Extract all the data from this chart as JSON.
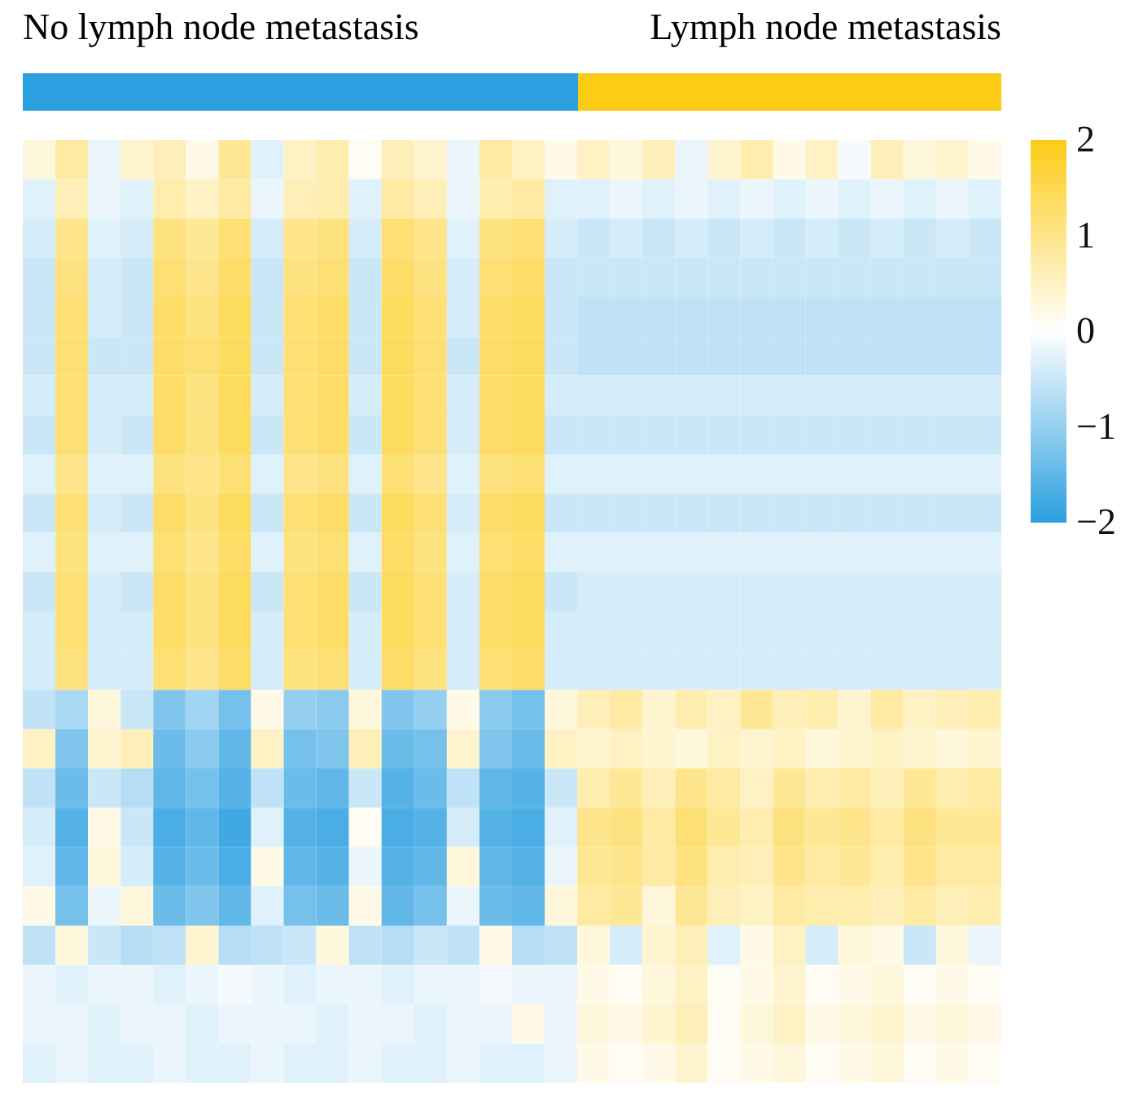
{
  "chart_data": {
    "type": "heatmap",
    "annotations": [
      "No lymph node metastasis",
      "Lymph node metastasis"
    ],
    "categories": [
      null,
      null,
      null,
      null,
      null,
      null,
      null,
      null,
      null,
      null,
      null,
      null,
      null,
      null,
      null,
      null,
      null,
      null,
      null,
      null,
      null,
      null,
      null,
      null,
      null,
      null,
      null,
      null,
      null,
      null
    ],
    "y_categories": [
      null,
      null,
      null,
      null,
      null,
      null,
      null,
      null,
      null,
      null,
      null,
      null,
      null,
      null,
      null,
      null,
      null,
      null,
      null,
      null,
      null,
      null,
      null,
      null
    ],
    "cells": [
      [
        0.3,
        0.8,
        -0.2,
        0.4,
        0.6,
        0.2,
        0.9,
        -0.3,
        0.5,
        0.7,
        0.1,
        0.6,
        0.4,
        -0.2,
        0.8,
        0.5,
        0.2,
        0.5,
        0.3,
        0.6,
        -0.2,
        0.4,
        0.7,
        0.2,
        0.5,
        -0.1,
        0.6,
        0.3,
        0.4,
        0.2
      ],
      [
        -0.3,
        0.6,
        -0.2,
        -0.3,
        0.7,
        0.5,
        0.8,
        -0.2,
        0.6,
        0.7,
        -0.3,
        0.8,
        0.6,
        -0.2,
        0.7,
        0.8,
        -0.3,
        -0.3,
        -0.2,
        -0.3,
        -0.2,
        -0.3,
        -0.2,
        -0.3,
        -0.2,
        -0.3,
        -0.2,
        -0.3,
        -0.2,
        -0.3
      ],
      [
        -0.4,
        1.0,
        -0.3,
        -0.4,
        1.1,
        0.9,
        1.2,
        -0.4,
        1.0,
        1.1,
        -0.4,
        1.2,
        1.0,
        -0.3,
        1.1,
        1.2,
        -0.4,
        -0.5,
        -0.4,
        -0.5,
        -0.4,
        -0.5,
        -0.4,
        -0.5,
        -0.4,
        -0.5,
        -0.4,
        -0.5,
        -0.4,
        -0.5
      ],
      [
        -0.5,
        1.1,
        -0.4,
        -0.5,
        1.2,
        1.0,
        1.3,
        -0.5,
        1.1,
        1.2,
        -0.5,
        1.3,
        1.1,
        -0.4,
        1.2,
        1.3,
        -0.5,
        -0.5,
        -0.5,
        -0.5,
        -0.5,
        -0.5,
        -0.5,
        -0.5,
        -0.5,
        -0.5,
        -0.5,
        -0.5,
        -0.5,
        -0.5
      ],
      [
        -0.5,
        1.2,
        -0.4,
        -0.5,
        1.3,
        1.1,
        1.4,
        -0.5,
        1.2,
        1.3,
        -0.5,
        1.4,
        1.2,
        -0.4,
        1.3,
        1.4,
        -0.5,
        -0.6,
        -0.6,
        -0.6,
        -0.6,
        -0.6,
        -0.6,
        -0.6,
        -0.6,
        -0.6,
        -0.6,
        -0.6,
        -0.6,
        -0.6
      ],
      [
        -0.5,
        1.2,
        -0.5,
        -0.5,
        1.3,
        1.2,
        1.4,
        -0.5,
        1.2,
        1.3,
        -0.5,
        1.4,
        1.2,
        -0.5,
        1.3,
        1.4,
        -0.5,
        -0.6,
        -0.6,
        -0.6,
        -0.6,
        -0.6,
        -0.6,
        -0.6,
        -0.6,
        -0.6,
        -0.6,
        -0.6,
        -0.6,
        -0.6
      ],
      [
        -0.4,
        1.2,
        -0.4,
        -0.4,
        1.3,
        1.1,
        1.4,
        -0.4,
        1.2,
        1.3,
        -0.4,
        1.4,
        1.2,
        -0.4,
        1.3,
        1.4,
        -0.4,
        -0.4,
        -0.4,
        -0.4,
        -0.4,
        -0.4,
        -0.4,
        -0.4,
        -0.4,
        -0.4,
        -0.4,
        -0.4,
        -0.4,
        -0.4
      ],
      [
        -0.5,
        1.2,
        -0.4,
        -0.5,
        1.3,
        1.1,
        1.4,
        -0.5,
        1.2,
        1.3,
        -0.5,
        1.4,
        1.2,
        -0.4,
        1.3,
        1.4,
        -0.5,
        -0.5,
        -0.5,
        -0.5,
        -0.5,
        -0.5,
        -0.5,
        -0.5,
        -0.5,
        -0.5,
        -0.5,
        -0.5,
        -0.5,
        -0.5
      ],
      [
        -0.3,
        1.0,
        -0.3,
        -0.3,
        1.1,
        1.0,
        1.2,
        -0.3,
        1.0,
        1.1,
        -0.3,
        1.2,
        1.0,
        -0.3,
        1.1,
        1.2,
        -0.3,
        -0.3,
        -0.3,
        -0.3,
        -0.3,
        -0.3,
        -0.3,
        -0.3,
        -0.3,
        -0.3,
        -0.3,
        -0.3,
        -0.3,
        -0.3
      ],
      [
        -0.5,
        1.2,
        -0.4,
        -0.5,
        1.3,
        1.1,
        1.4,
        -0.5,
        1.2,
        1.3,
        -0.5,
        1.4,
        1.2,
        -0.4,
        1.3,
        1.4,
        -0.5,
        -0.5,
        -0.5,
        -0.5,
        -0.5,
        -0.5,
        -0.5,
        -0.5,
        -0.5,
        -0.5,
        -0.5,
        -0.5,
        -0.5,
        -0.5
      ],
      [
        -0.3,
        1.1,
        -0.3,
        -0.3,
        1.2,
        1.0,
        1.3,
        -0.3,
        1.1,
        1.2,
        -0.3,
        1.3,
        1.1,
        -0.3,
        1.2,
        1.3,
        -0.3,
        -0.3,
        -0.3,
        -0.3,
        -0.3,
        -0.3,
        -0.3,
        -0.3,
        -0.3,
        -0.3,
        -0.3,
        -0.3,
        -0.3,
        -0.3
      ],
      [
        -0.5,
        1.2,
        -0.4,
        -0.5,
        1.3,
        1.1,
        1.4,
        -0.5,
        1.2,
        1.3,
        -0.5,
        1.4,
        1.2,
        -0.4,
        1.3,
        1.4,
        -0.5,
        -0.4,
        -0.4,
        -0.4,
        -0.4,
        -0.4,
        -0.4,
        -0.4,
        -0.4,
        -0.4,
        -0.4,
        -0.4,
        -0.4,
        -0.4
      ],
      [
        -0.4,
        1.2,
        -0.4,
        -0.4,
        1.3,
        1.1,
        1.4,
        -0.4,
        1.2,
        1.3,
        -0.4,
        1.4,
        1.2,
        -0.4,
        1.3,
        1.4,
        -0.4,
        -0.4,
        -0.4,
        -0.4,
        -0.4,
        -0.4,
        -0.4,
        -0.4,
        -0.4,
        -0.4,
        -0.4,
        -0.4,
        -0.4,
        -0.4
      ],
      [
        -0.4,
        1.1,
        -0.4,
        -0.4,
        1.2,
        1.0,
        1.3,
        -0.4,
        1.1,
        1.2,
        -0.4,
        1.3,
        1.1,
        -0.4,
        1.2,
        1.3,
        -0.4,
        -0.4,
        -0.4,
        -0.4,
        -0.4,
        -0.4,
        -0.4,
        -0.4,
        -0.4,
        -0.4,
        -0.4,
        -0.4,
        -0.4,
        -0.4
      ],
      [
        -0.6,
        -0.8,
        0.3,
        -0.5,
        -1.2,
        -0.9,
        -1.3,
        0.2,
        -1.0,
        -1.1,
        0.3,
        -1.2,
        -1.0,
        0.2,
        -1.1,
        -1.3,
        0.3,
        0.6,
        0.8,
        0.4,
        0.7,
        0.5,
        0.9,
        0.6,
        0.7,
        0.4,
        0.8,
        0.5,
        0.6,
        0.7
      ],
      [
        0.5,
        -1.2,
        0.4,
        0.6,
        -1.4,
        -1.1,
        -1.5,
        0.5,
        -1.3,
        -1.2,
        0.6,
        -1.4,
        -1.3,
        0.4,
        -1.2,
        -1.4,
        0.5,
        0.4,
        0.5,
        0.4,
        0.3,
        0.5,
        0.4,
        0.5,
        0.3,
        0.4,
        0.5,
        0.4,
        0.3,
        0.4
      ],
      [
        -0.6,
        -1.4,
        -0.5,
        -0.7,
        -1.5,
        -1.3,
        -1.6,
        -0.6,
        -1.4,
        -1.5,
        -0.5,
        -1.6,
        -1.4,
        -0.6,
        -1.5,
        -1.6,
        -0.5,
        0.7,
        0.9,
        0.6,
        1.0,
        0.8,
        0.5,
        0.9,
        0.7,
        0.8,
        0.6,
        0.9,
        0.7,
        0.8
      ],
      [
        -0.4,
        -1.6,
        0.2,
        -0.5,
        -1.7,
        -1.5,
        -1.8,
        -0.3,
        -1.6,
        -1.7,
        0.1,
        -1.7,
        -1.6,
        -0.4,
        -1.6,
        -1.7,
        -0.3,
        1.0,
        1.1,
        0.8,
        1.2,
        0.9,
        0.7,
        1.1,
        0.9,
        1.0,
        0.8,
        1.1,
        0.9,
        0.9
      ],
      [
        -0.3,
        -1.5,
        0.3,
        -0.4,
        -1.6,
        -1.4,
        -1.7,
        0.2,
        -1.5,
        -1.6,
        -0.2,
        -1.6,
        -1.5,
        0.3,
        -1.5,
        -1.6,
        -0.2,
        0.9,
        1.0,
        0.8,
        1.1,
        0.7,
        0.6,
        1.0,
        0.8,
        0.9,
        0.7,
        1.0,
        0.8,
        0.8
      ],
      [
        0.2,
        -1.3,
        -0.2,
        0.3,
        -1.4,
        -1.2,
        -1.5,
        -0.3,
        -1.3,
        -1.4,
        0.2,
        -1.5,
        -1.3,
        -0.2,
        -1.4,
        -1.5,
        0.3,
        0.8,
        0.9,
        0.3,
        0.9,
        0.6,
        0.5,
        0.8,
        0.7,
        0.7,
        0.6,
        0.8,
        0.6,
        0.7
      ],
      [
        -0.6,
        0.3,
        -0.5,
        -0.7,
        -0.6,
        0.4,
        -0.7,
        -0.6,
        -0.5,
        0.3,
        -0.6,
        -0.7,
        -0.5,
        -0.6,
        0.2,
        -0.7,
        -0.6,
        0.3,
        -0.4,
        0.4,
        0.6,
        -0.3,
        0.2,
        0.5,
        -0.4,
        0.3,
        0.2,
        -0.5,
        0.3,
        -0.2
      ],
      [
        -0.2,
        -0.3,
        -0.2,
        -0.2,
        -0.3,
        -0.2,
        -0.1,
        -0.2,
        -0.3,
        -0.2,
        -0.2,
        -0.3,
        -0.2,
        -0.2,
        -0.1,
        -0.2,
        -0.2,
        0.2,
        0.1,
        0.3,
        0.5,
        0.1,
        0.2,
        0.4,
        0.1,
        0.2,
        0.3,
        0.1,
        0.2,
        0.1
      ],
      [
        -0.2,
        -0.2,
        -0.3,
        -0.2,
        -0.2,
        -0.3,
        -0.2,
        -0.2,
        -0.2,
        -0.3,
        -0.2,
        -0.2,
        -0.3,
        -0.2,
        -0.2,
        0.2,
        -0.2,
        0.3,
        0.2,
        0.4,
        0.6,
        0.1,
        0.3,
        0.5,
        0.2,
        0.3,
        0.4,
        0.2,
        0.3,
        0.2
      ],
      [
        -0.3,
        -0.2,
        -0.3,
        -0.3,
        -0.2,
        -0.3,
        -0.3,
        -0.2,
        -0.3,
        -0.3,
        -0.2,
        -0.3,
        -0.3,
        -0.2,
        -0.3,
        -0.3,
        -0.2,
        0.2,
        0.1,
        0.2,
        0.4,
        0.1,
        0.2,
        0.3,
        0.1,
        0.2,
        0.3,
        0.1,
        0.2,
        0.1
      ]
    ],
    "clim": [
      -2,
      2
    ],
    "cticks": [
      2,
      1,
      0,
      -1,
      -2
    ]
  }
}
